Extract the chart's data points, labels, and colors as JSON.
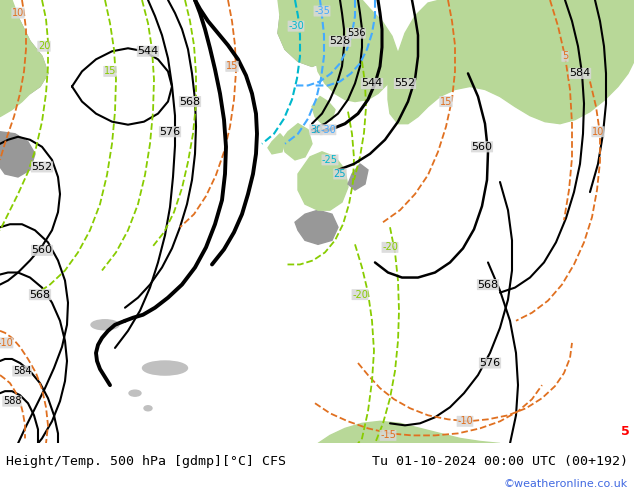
{
  "title_left": "Height/Temp. 500 hPa [gdmp][°C] CFS",
  "title_right": "Tu 01-10-2024 00:00 UTC (00+192)",
  "credit": "©weatheronline.co.uk",
  "ocean_color": "#d8d8d8",
  "land_green": "#b8d898",
  "land_gray": "#989898",
  "land_darkgray": "#909090",
  "bottom_bar_color": "#ffffff",
  "credit_color": "#4169e1",
  "figsize": [
    6.34,
    4.9
  ],
  "dpi": 100
}
